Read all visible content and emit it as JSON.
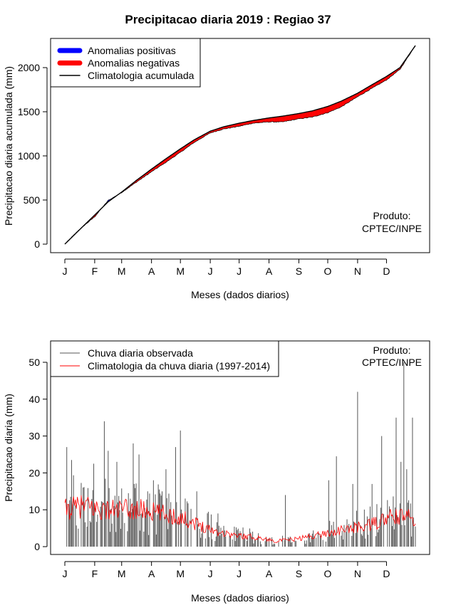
{
  "chart_data": [
    {
      "type": "area",
      "title": "Precipitacao diaria 2019 : Regiao 37",
      "xlabel": "Meses (dados diarios)",
      "ylabel": "Precipitacao diaria acumulada (mm)",
      "ylim": [
        0,
        2300
      ],
      "yticks": [
        0,
        500,
        1000,
        1500,
        2000
      ],
      "months": [
        "J",
        "F",
        "M",
        "A",
        "M",
        "J",
        "J",
        "A",
        "S",
        "O",
        "N",
        "D"
      ],
      "legend": [
        {
          "label": "Anomalias positivas",
          "color": "#0000ff"
        },
        {
          "label": "Anomalias negativas",
          "color": "#ff0000"
        },
        {
          "label": "Climatologia acumulada",
          "color": "#000000"
        }
      ],
      "credit": [
        "Produto:",
        "CPTEC/INPE"
      ],
      "climatology_keypoints": {
        "day": [
          1,
          15,
          32,
          46,
          60,
          75,
          91,
          105,
          121,
          135,
          152,
          166,
          182,
          196,
          213,
          227,
          244,
          258,
          274,
          288,
          305,
          319,
          335,
          349,
          365
        ],
        "value": [
          0,
          150,
          330,
          480,
          590,
          720,
          850,
          960,
          1080,
          1180,
          1280,
          1330,
          1370,
          1400,
          1430,
          1450,
          1480,
          1510,
          1560,
          1620,
          1710,
          1800,
          1900,
          2000,
          2250
        ]
      },
      "observed_keypoints": {
        "day": [
          1,
          15,
          32,
          46,
          60,
          75,
          91,
          105,
          121,
          135,
          152,
          166,
          182,
          196,
          213,
          227,
          244,
          258,
          274,
          288,
          305,
          319,
          335,
          349,
          365
        ],
        "value": [
          0,
          155,
          310,
          495,
          585,
          700,
          820,
          920,
          1040,
          1150,
          1260,
          1305,
          1335,
          1370,
          1385,
          1385,
          1420,
          1440,
          1490,
          1555,
          1670,
          1760,
          1860,
          1980,
          2250
        ]
      }
    },
    {
      "type": "bar",
      "xlabel": "Meses (dados diarios)",
      "ylabel": "Precipitacao diaria (mm)",
      "ylim": [
        0,
        55
      ],
      "yticks": [
        0,
        10,
        20,
        30,
        40,
        50
      ],
      "months": [
        "J",
        "F",
        "M",
        "A",
        "M",
        "J",
        "J",
        "A",
        "S",
        "O",
        "N",
        "D"
      ],
      "legend": [
        {
          "label": "Chuva diaria observada",
          "color": "#555555"
        },
        {
          "label": "Climatologia da chuva diaria (1997-2014)",
          "color": "#ff0000"
        }
      ],
      "credit": [
        "Produto:",
        "CPTEC/INPE"
      ],
      "climatology_daily_keypoints": {
        "day": [
          1,
          20,
          40,
          60,
          80,
          100,
          120,
          140,
          160,
          180,
          200,
          220,
          240,
          260,
          280,
          300,
          320,
          340,
          365
        ],
        "value": [
          10,
          11,
          10,
          10,
          10,
          9,
          8,
          6,
          4,
          3,
          2.5,
          1.5,
          2,
          3,
          4,
          5,
          6,
          8,
          8
        ]
      },
      "observed_peaks": [
        {
          "day": 3,
          "value": 27
        },
        {
          "day": 8,
          "value": 23.5
        },
        {
          "day": 31,
          "value": 22.5
        },
        {
          "day": 42,
          "value": 34
        },
        {
          "day": 46,
          "value": 26
        },
        {
          "day": 55,
          "value": 23
        },
        {
          "day": 67,
          "value": 14.5
        },
        {
          "day": 72,
          "value": 28
        },
        {
          "day": 78,
          "value": 25
        },
        {
          "day": 87,
          "value": 15
        },
        {
          "day": 93,
          "value": 18
        },
        {
          "day": 106,
          "value": 21
        },
        {
          "day": 116,
          "value": 27
        },
        {
          "day": 121,
          "value": 31.5
        },
        {
          "day": 138,
          "value": 15
        },
        {
          "day": 160,
          "value": 9
        },
        {
          "day": 180,
          "value": 4.5
        },
        {
          "day": 230,
          "value": 14
        },
        {
          "day": 275,
          "value": 18
        },
        {
          "day": 283,
          "value": 24.5
        },
        {
          "day": 300,
          "value": 17
        },
        {
          "day": 305,
          "value": 42
        },
        {
          "day": 320,
          "value": 17
        },
        {
          "day": 330,
          "value": 30
        },
        {
          "day": 345,
          "value": 35
        },
        {
          "day": 350,
          "value": 23
        },
        {
          "day": 353,
          "value": 50
        },
        {
          "day": 356,
          "value": 21
        },
        {
          "day": 362,
          "value": 35
        }
      ]
    }
  ]
}
